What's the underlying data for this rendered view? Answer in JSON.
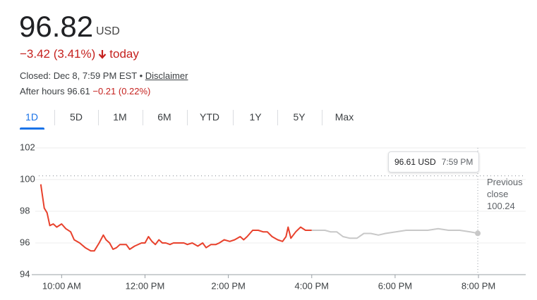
{
  "header": {
    "price": "96.82",
    "currency": "USD",
    "change": "−3.42 (3.41%)",
    "today": "today",
    "closed": "Closed: Dec 8, 7:59 PM EST",
    "separator": "•",
    "disclaimer": "Disclaimer",
    "after_hours": "After hours 96.61",
    "after_hours_change": "−0.21 (0.22%)"
  },
  "tabs": {
    "items": [
      "1D",
      "5D",
      "1M",
      "6M",
      "YTD",
      "1Y",
      "5Y",
      "Max"
    ],
    "selected": 0
  },
  "chart_data": {
    "type": "line",
    "xlim": [
      557,
      1268
    ],
    "ylim": [
      94,
      102
    ],
    "yticks": [
      94,
      96,
      98,
      100,
      102
    ],
    "grid": true,
    "xticks": [
      {
        "value": 600,
        "label": "10:00 AM"
      },
      {
        "value": 720,
        "label": "12:00 PM"
      },
      {
        "value": 840,
        "label": "2:00 PM"
      },
      {
        "value": 960,
        "label": "4:00 PM"
      },
      {
        "value": 1080,
        "label": "6:00 PM"
      },
      {
        "value": 1200,
        "label": "8:00 PM"
      }
    ],
    "series": [
      {
        "color": "#e8412c",
        "x": [
          570,
          575,
          579,
          583,
          588,
          593,
          600,
          606,
          613,
          618,
          626,
          634,
          642,
          647,
          654,
          660,
          664,
          669,
          674,
          679,
          684,
          693,
          698,
          705,
          715,
          720,
          725,
          730,
          735,
          740,
          745,
          750,
          756,
          761,
          768,
          776,
          781,
          788,
          796,
          803,
          808,
          815,
          822,
          827,
          834,
          842,
          849,
          857,
          862,
          867,
          875,
          883,
          890,
          896,
          903,
          911,
          918,
          923,
          926,
          930,
          937,
          944,
          951,
          960
        ],
        "values": [
          99.7,
          98.2,
          97.9,
          97.1,
          97.2,
          97.0,
          97.2,
          96.9,
          96.7,
          96.2,
          96.0,
          95.7,
          95.5,
          95.5,
          96.0,
          96.5,
          96.2,
          96.0,
          95.6,
          95.7,
          95.9,
          95.9,
          95.6,
          95.8,
          96.0,
          96.0,
          96.4,
          96.1,
          95.9,
          96.2,
          96.0,
          96.0,
          95.9,
          96.0,
          96.0,
          96.0,
          95.9,
          96.0,
          95.8,
          96.0,
          95.7,
          95.9,
          95.9,
          96.0,
          96.2,
          96.1,
          96.2,
          96.4,
          96.2,
          96.4,
          96.8,
          96.8,
          96.7,
          96.7,
          96.4,
          96.2,
          96.1,
          96.4,
          97.0,
          96.3,
          96.7,
          97.0,
          96.8,
          96.8
        ]
      },
      {
        "color": "#c8c8c8",
        "x": [
          960,
          969,
          979,
          987,
          996,
          1005,
          1015,
          1025,
          1035,
          1045,
          1056,
          1066,
          1081,
          1096,
          1112,
          1127,
          1142,
          1157,
          1173,
          1188,
          1199
        ],
        "values": [
          96.8,
          96.8,
          96.8,
          96.7,
          96.7,
          96.4,
          96.3,
          96.3,
          96.6,
          96.6,
          96.5,
          96.6,
          96.7,
          96.8,
          96.8,
          96.8,
          96.9,
          96.8,
          96.8,
          96.7,
          96.61
        ]
      }
    ],
    "previous_close": {
      "label": "Previous close",
      "value": 100.24
    },
    "tooltip": {
      "price": "96.61 USD",
      "time": "7:59 PM"
    }
  }
}
